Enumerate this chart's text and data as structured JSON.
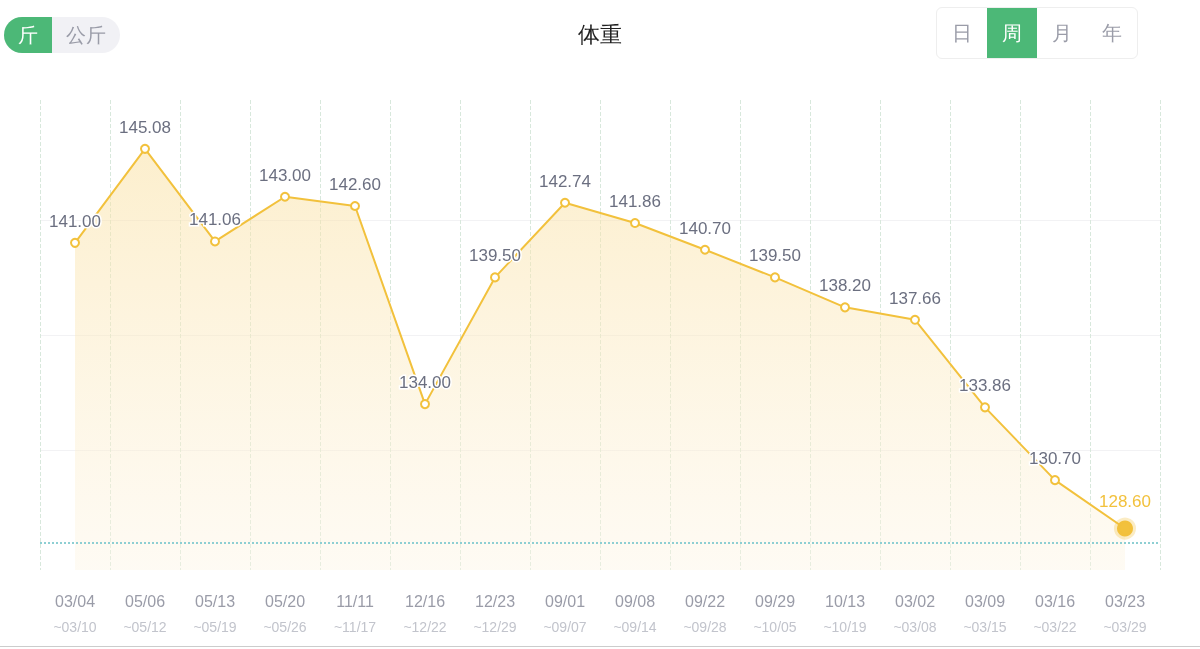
{
  "chart_data": {
    "type": "area",
    "title": "体重",
    "categories": [
      "03/04\n~03/10",
      "05/06\n~05/12",
      "05/13\n~05/19",
      "05/20\n~05/26",
      "11/11\n~11/17",
      "12/16\n~12/22",
      "12/23\n~12/29",
      "09/01\n~09/07",
      "09/08\n~09/14",
      "09/22\n~09/28",
      "09/29\n~10/05",
      "10/13\n~10/19",
      "03/02\n~03/08",
      "03/09\n~03/15",
      "03/16\n~03/22",
      "03/23\n~03/29"
    ],
    "series": [
      {
        "color": "#f2c13c",
        "values": [
          141.0,
          145.08,
          141.06,
          143.0,
          142.6,
          134.0,
          139.5,
          142.74,
          141.86,
          140.7,
          139.5,
          138.2,
          137.66,
          133.86,
          130.7,
          128.6
        ],
        "value_labels": [
          "141.00",
          "145.08",
          "141.06",
          "143.00",
          "142.60",
          "134.00",
          "139.50",
          "142.74",
          "141.86",
          "140.70",
          "139.50",
          "138.20",
          "137.66",
          "133.86",
          "130.70",
          "128.60"
        ]
      }
    ],
    "ylim": [
      126.8,
      147.2
    ],
    "yticks": [
      {
        "value": 132,
        "label": null
      },
      {
        "value": 137,
        "label": null
      },
      {
        "value": 142,
        "label": null
      }
    ],
    "ref_lines": [
      {
        "axis": "y",
        "value": 128,
        "color": "#8ecfd3",
        "line_style": "dotted"
      }
    ],
    "annotations": [
      "斤",
      "公斤",
      "日",
      "周",
      "月",
      "年"
    ],
    "grid": true,
    "marker": "circle",
    "tick_labels": "x"
  }
}
